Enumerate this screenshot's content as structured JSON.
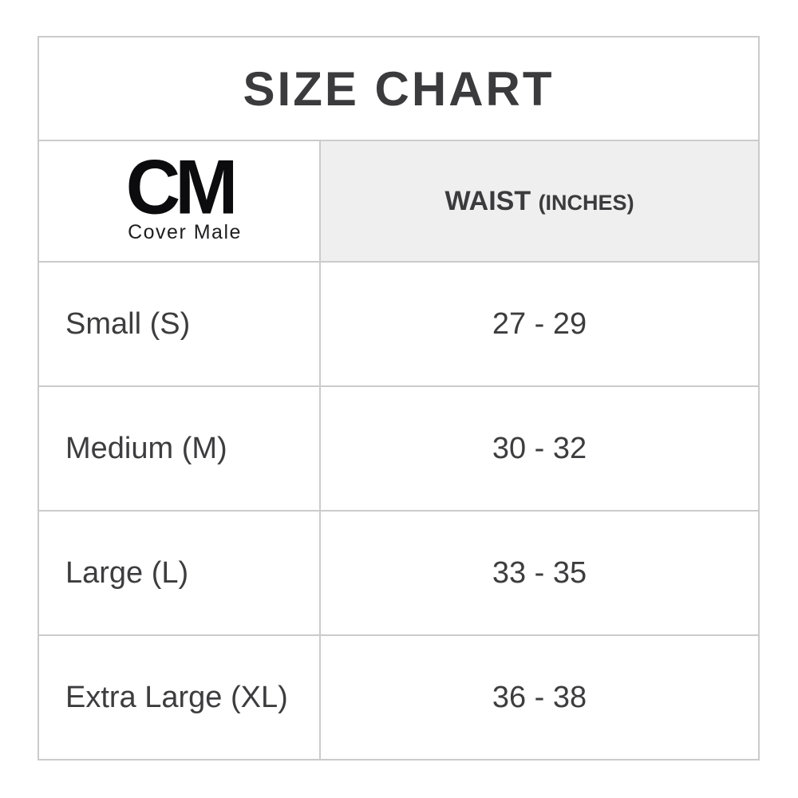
{
  "title": "SIZE CHART",
  "brand": {
    "initials": "CM",
    "name": "Cover Male"
  },
  "header": {
    "waist_label": "WAIST",
    "waist_unit": "(INCHES)"
  },
  "colors": {
    "gridline": "#cbcbcb",
    "header_bg": "#efefef",
    "text": "#3b3b3d",
    "logo": "#0c0c0e",
    "background": "#ffffff"
  },
  "chart_data": {
    "type": "table",
    "title": "SIZE CHART",
    "columns": [
      "CM Cover Male",
      "WAIST (INCHES)"
    ],
    "rows": [
      {
        "size": "Small (S)",
        "waist": "27 - 29"
      },
      {
        "size": "Medium (M)",
        "waist": "30 - 32"
      },
      {
        "size": "Large (L)",
        "waist": "33 - 35"
      },
      {
        "size": "Extra Large (XL)",
        "waist": "36 - 38"
      }
    ]
  }
}
